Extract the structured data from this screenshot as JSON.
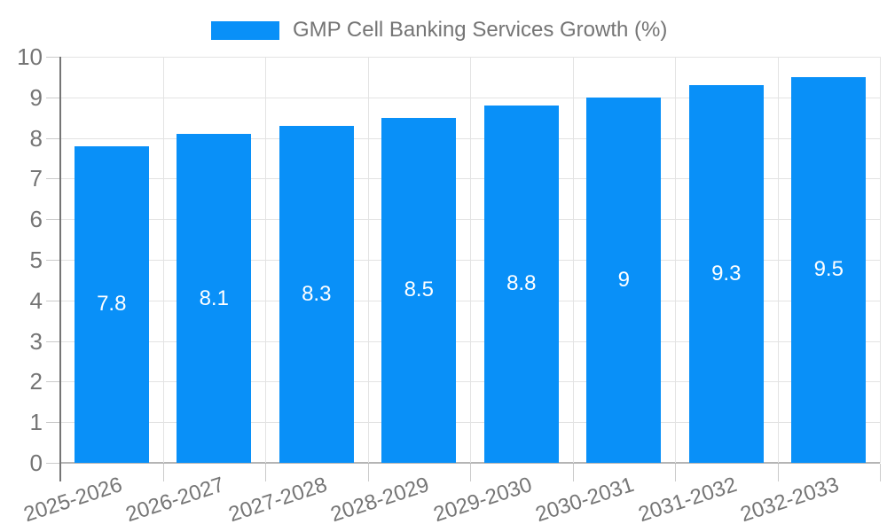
{
  "chart_data": {
    "type": "bar",
    "title": "GMP Cell Banking Services Growth (%)",
    "categories": [
      "2025-2026",
      "2026-2027",
      "2027-2028",
      "2028-2029",
      "2029-2030",
      "2030-2031",
      "2031-2032",
      "2032-2033"
    ],
    "series": [
      {
        "name": "GMP Cell Banking Services Growth (%)",
        "values": [
          7.8,
          8.1,
          8.3,
          8.5,
          8.8,
          9,
          9.3,
          9.5
        ],
        "value_labels": [
          "7.8",
          "8.1",
          "8.3",
          "8.5",
          "8.8",
          "9",
          "9.3",
          "9.5"
        ]
      }
    ],
    "xlabel": "",
    "ylabel": "",
    "ylim": [
      0,
      10
    ],
    "ytick_step": 1,
    "grid": true,
    "legend_position": "top-center",
    "colors": {
      "bar": "#0990F8",
      "bar_value_text": "#FFFFFF",
      "axis_text": "#757575",
      "gridline": "#E3E3E3",
      "baseline": "#B5B5B5",
      "axis_line": "#757575",
      "tick": "#CBCBCB",
      "background": "#FFFFFF"
    }
  }
}
